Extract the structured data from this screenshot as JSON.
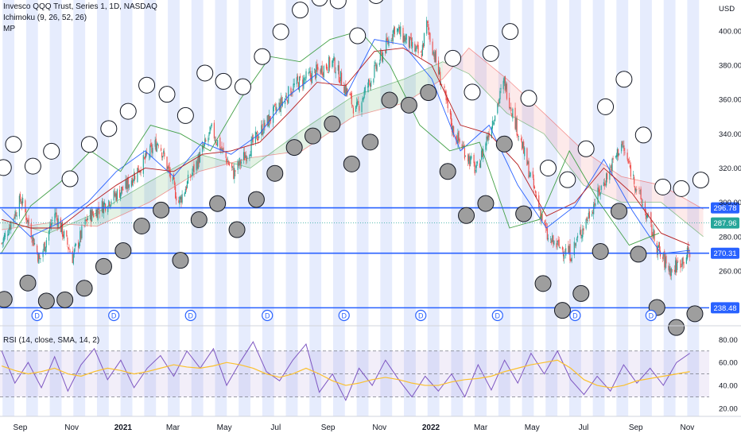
{
  "header": {
    "symbol_line": "Invesco QQQ Trust, Series 1, 1D, NASDAQ",
    "indicator_line": "Ichimoku (9, 26, 52, 26)",
    "mp_label": "MP"
  },
  "rsi_pane": {
    "legend": "RSI (14, close, SMA, 14, 2)"
  },
  "colors": {
    "up": "#26a69a",
    "down": "#ef5350",
    "band": "#e6ecfd",
    "level_line": "#2962ff",
    "conversion": "#2962ff",
    "base": "#b71c1c",
    "lagging": "#43a047",
    "rsi_line": "#7e57c2",
    "rsi_ma": "#fbc02d",
    "current_price": "#26a69a"
  },
  "chart_data": [
    {
      "type": "candlestick",
      "title": "Invesco QQQ Trust, Series 1, 1D, NASDAQ",
      "overlays": [
        "Ichimoku (9, 26, 52, 26)",
        "MP"
      ],
      "y_unit": "USD",
      "ylim": [
        228,
        418
      ],
      "y_ticks": [
        260,
        280,
        300,
        320,
        340,
        360,
        380,
        400
      ],
      "x_tick_labels": [
        "Sep",
        "Nov",
        "2021",
        "Mar",
        "May",
        "Jul",
        "Sep",
        "Nov",
        "2022",
        "Mar",
        "May",
        "Jul",
        "Sep",
        "Nov"
      ],
      "x_tick_dates": [
        "2020-09-01",
        "2020-11-01",
        "2021-01-01",
        "2021-03-01",
        "2021-05-01",
        "2021-07-01",
        "2021-09-01",
        "2021-11-01",
        "2022-01-01",
        "2022-03-01",
        "2022-05-01",
        "2022-07-01",
        "2022-09-01",
        "2022-11-01"
      ],
      "close_trend": [
        {
          "date": "2020-08-10",
          "close": 276
        },
        {
          "date": "2020-09-02",
          "close": 302
        },
        {
          "date": "2020-09-24",
          "close": 266
        },
        {
          "date": "2020-10-12",
          "close": 294
        },
        {
          "date": "2020-11-02",
          "close": 268
        },
        {
          "date": "2020-11-20",
          "close": 291
        },
        {
          "date": "2021-01-04",
          "close": 309
        },
        {
          "date": "2021-02-12",
          "close": 336
        },
        {
          "date": "2021-03-08",
          "close": 300
        },
        {
          "date": "2021-04-16",
          "close": 342
        },
        {
          "date": "2021-05-12",
          "close": 317
        },
        {
          "date": "2021-06-15",
          "close": 343
        },
        {
          "date": "2021-07-23",
          "close": 368
        },
        {
          "date": "2021-09-07",
          "close": 382
        },
        {
          "date": "2021-10-04",
          "close": 353
        },
        {
          "date": "2021-11-19",
          "close": 402
        },
        {
          "date": "2021-12-20",
          "close": 385
        },
        {
          "date": "2021-12-27",
          "close": 404
        },
        {
          "date": "2022-01-27",
          "close": 342
        },
        {
          "date": "2022-02-24",
          "close": 318
        },
        {
          "date": "2022-03-29",
          "close": 370
        },
        {
          "date": "2022-05-20",
          "close": 278
        },
        {
          "date": "2022-06-16",
          "close": 270
        },
        {
          "date": "2022-08-15",
          "close": 334
        },
        {
          "date": "2022-09-30",
          "close": 269
        },
        {
          "date": "2022-10-13",
          "close": 260
        },
        {
          "date": "2022-11-04",
          "close": 271
        }
      ],
      "series": [
        {
          "name": "Conversion line",
          "values": [
            296,
            280,
            288,
            300,
            318,
            330,
            315,
            335,
            328,
            340,
            362,
            375,
            362,
            395,
            392,
            372,
            330,
            345,
            310,
            285,
            298,
            325,
            295,
            270,
            272
          ]
        },
        {
          "name": "Base line",
          "values": [
            290,
            285,
            285,
            298,
            310,
            320,
            318,
            328,
            330,
            335,
            352,
            370,
            368,
            388,
            390,
            380,
            345,
            340,
            322,
            292,
            300,
            320,
            305,
            282,
            275
          ]
        },
        {
          "name": "Lagging span",
          "values": [
            285,
            270,
            298,
            312,
            330,
            318,
            345,
            340,
            330,
            360,
            385,
            382,
            395,
            400,
            380,
            345,
            330,
            335,
            285,
            290,
            330,
            300,
            275,
            282
          ]
        }
      ],
      "cloud": [
        {
          "date": "2020-08-10",
          "span_a": 290,
          "span_b": 284
        },
        {
          "date": "2020-10-05",
          "span_a": 282,
          "span_b": 288
        },
        {
          "date": "2020-12-01",
          "span_a": 294,
          "span_b": 286
        },
        {
          "date": "2021-02-01",
          "span_a": 312,
          "span_b": 300
        },
        {
          "date": "2021-04-01",
          "span_a": 328,
          "span_b": 318
        },
        {
          "date": "2021-06-01",
          "span_a": 320,
          "span_b": 326
        },
        {
          "date": "2021-08-01",
          "span_a": 342,
          "span_b": 330
        },
        {
          "date": "2021-10-01",
          "span_a": 362,
          "span_b": 350
        },
        {
          "date": "2021-12-01",
          "span_a": 372,
          "span_b": 358
        },
        {
          "date": "2022-01-15",
          "span_a": 382,
          "span_b": 372
        },
        {
          "date": "2022-02-15",
          "span_a": 375,
          "span_b": 390
        },
        {
          "date": "2022-04-01",
          "span_a": 352,
          "span_b": 372
        },
        {
          "date": "2022-05-15",
          "span_a": 340,
          "span_b": 352
        },
        {
          "date": "2022-07-01",
          "span_a": 310,
          "span_b": 330
        },
        {
          "date": "2022-08-15",
          "span_a": 300,
          "span_b": 315
        },
        {
          "date": "2022-10-01",
          "span_a": 300,
          "span_b": 310
        },
        {
          "date": "2022-11-20",
          "span_a": 280,
          "span_b": 296
        }
      ],
      "horizontal_levels": [
        {
          "value": 296.78,
          "label": "296.78",
          "color": "#2962ff"
        },
        {
          "value": 270.31,
          "label": "270.31",
          "color": "#2962ff"
        },
        {
          "value": 238.48,
          "label": "238.48",
          "color": "#2962ff"
        }
      ],
      "current_price": {
        "value": 287.96,
        "label": "287.96"
      },
      "dividend_markers": {
        "label": "D",
        "dates": [
          "2020-09-21",
          "2020-12-21",
          "2021-03-22",
          "2021-06-21",
          "2021-09-20",
          "2021-12-20",
          "2022-03-21",
          "2022-06-21",
          "2022-09-19"
        ]
      },
      "mp_circles": {
        "open_dates": [
          "2020-08-12",
          "2020-08-24",
          "2020-09-16",
          "2020-10-08",
          "2020-10-30",
          "2020-11-22",
          "2020-12-15",
          "2021-01-07",
          "2021-01-29",
          "2021-02-22",
          "2021-03-16",
          "2021-04-08",
          "2021-04-30",
          "2021-05-23",
          "2021-06-15",
          "2021-07-07",
          "2021-07-30",
          "2021-08-22",
          "2021-09-13",
          "2021-10-06",
          "2021-10-28",
          "2021-11-20",
          "2021-12-13",
          "2022-01-04",
          "2022-01-27",
          "2022-02-19",
          "2022-03-13",
          "2022-04-05",
          "2022-04-27",
          "2022-05-20",
          "2022-06-12",
          "2022-07-04",
          "2022-07-27",
          "2022-08-18",
          "2022-09-10",
          "2022-10-03",
          "2022-10-25",
          "2022-11-17"
        ],
        "filled_dates": [
          "2020-08-13",
          "2020-09-10",
          "2020-10-02",
          "2020-10-24",
          "2020-11-16",
          "2020-12-09",
          "2021-01-01",
          "2021-01-23",
          "2021-02-15",
          "2021-03-10",
          "2021-04-01",
          "2021-04-23",
          "2021-05-16",
          "2021-06-08",
          "2021-06-30",
          "2021-07-23",
          "2021-08-14",
          "2021-09-06",
          "2021-09-29",
          "2021-10-21",
          "2021-11-13",
          "2021-12-06",
          "2021-12-29",
          "2022-01-21",
          "2022-02-12",
          "2022-03-07",
          "2022-03-29",
          "2022-04-21",
          "2022-05-14",
          "2022-06-06",
          "2022-06-28",
          "2022-07-21",
          "2022-08-12",
          "2022-09-04",
          "2022-09-26",
          "2022-10-19",
          "2022-11-10"
        ]
      }
    },
    {
      "type": "line",
      "title": "RSI (14, close, SMA, 14, 2)",
      "ylim": [
        13,
        92
      ],
      "y_ticks": [
        20,
        40,
        60,
        80
      ],
      "y_tick_labels": [
        "20.00",
        "40.00",
        "60.00",
        "80.00"
      ],
      "band": {
        "upper": 70,
        "middle": 50,
        "lower": 30
      },
      "series": [
        {
          "name": "RSI",
          "values": [
            70,
            42,
            60,
            38,
            65,
            35,
            58,
            72,
            45,
            62,
            38,
            55,
            66,
            48,
            70,
            55,
            72,
            40,
            60,
            78,
            52,
            44,
            62,
            76,
            34,
            50,
            27,
            55,
            40,
            62,
            45,
            30,
            48,
            35,
            50,
            30,
            58,
            36,
            62,
            42,
            68,
            50,
            70,
            45,
            32,
            48,
            35,
            58,
            42,
            55,
            40,
            60,
            68
          ]
        },
        {
          "name": "RSI-based MA",
          "values": [
            57,
            53,
            50,
            52,
            55,
            50,
            48,
            52,
            55,
            53,
            50,
            52,
            55,
            58,
            56,
            55,
            57,
            60,
            58,
            55,
            50,
            47,
            50,
            55,
            50,
            44,
            40,
            42,
            45,
            47,
            45,
            42,
            40,
            40,
            43,
            45,
            46,
            48,
            52,
            55,
            58,
            60,
            62,
            55,
            45,
            40,
            38,
            40,
            44,
            46,
            48,
            50,
            52
          ]
        }
      ]
    }
  ]
}
